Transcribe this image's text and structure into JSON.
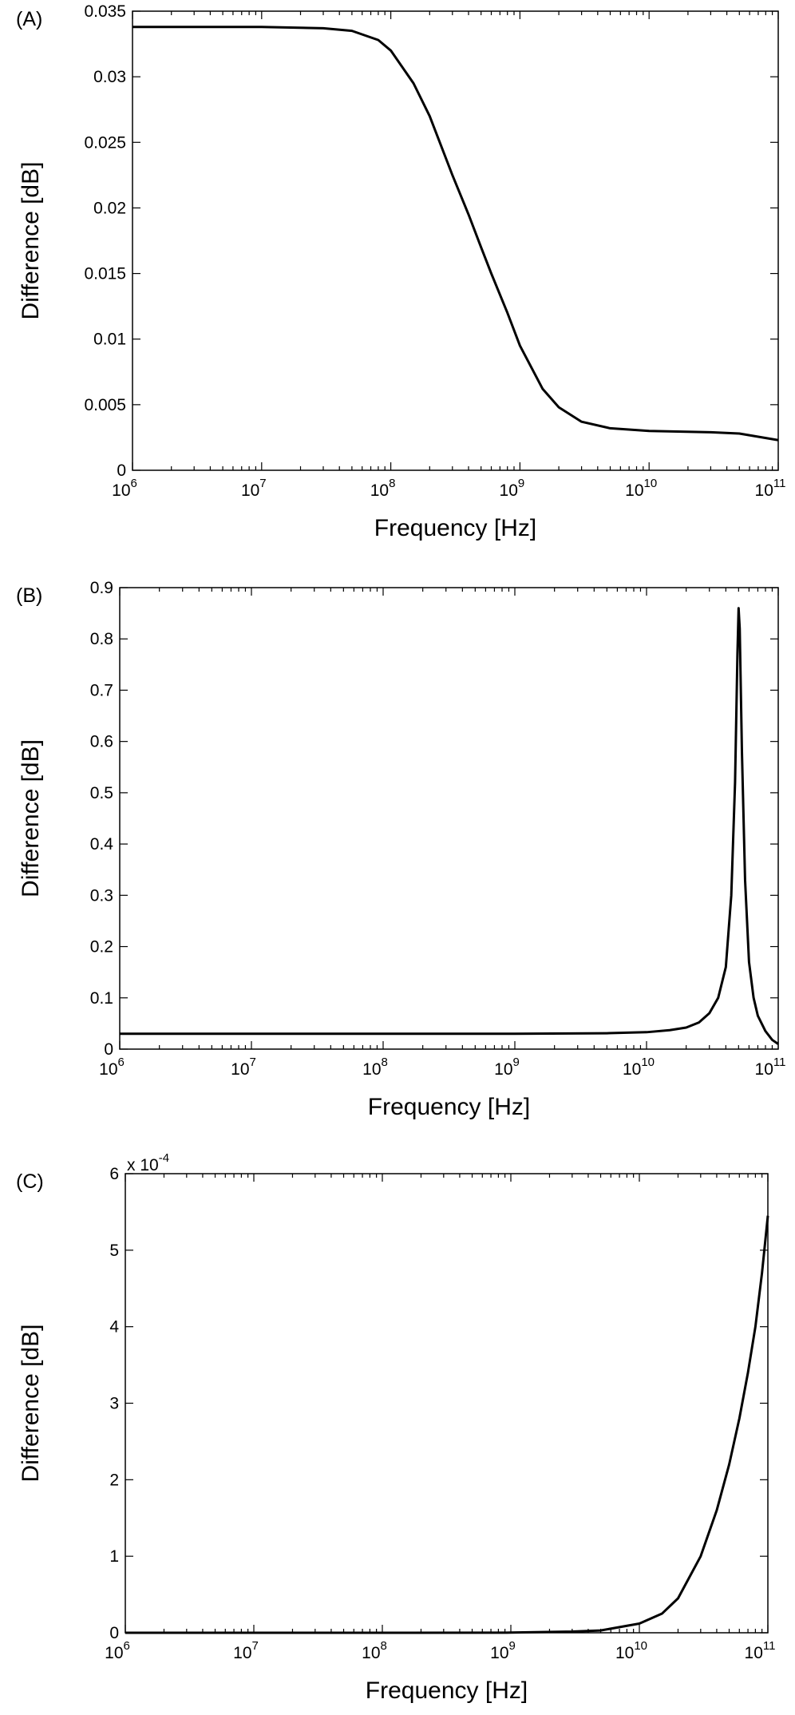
{
  "panels": [
    {
      "label": "(A)",
      "ylabel": "Difference [dB]",
      "xlabel": "Frequency [Hz]",
      "exponent_label": "",
      "y_ticks": [
        "0",
        "0.005",
        "0.01",
        "0.015",
        "0.02",
        "0.025",
        "0.03",
        "0.035"
      ],
      "x_ticks": [
        "10^6",
        "10^7",
        "10^8",
        "10^9",
        "10^10",
        "10^11"
      ]
    },
    {
      "label": "(B)",
      "ylabel": "Difference [dB]",
      "xlabel": "Frequency [Hz]",
      "exponent_label": "",
      "y_ticks": [
        "0",
        "0.1",
        "0.2",
        "0.3",
        "0.4",
        "0.5",
        "0.6",
        "0.7",
        "0.8",
        "0.9"
      ],
      "x_ticks": [
        "10^6",
        "10^7",
        "10^8",
        "10^9",
        "10^10",
        "10^11"
      ]
    },
    {
      "label": "(C)",
      "ylabel": "Difference [dB]",
      "xlabel": "Frequency [Hz]",
      "exponent_label": "x 10^-4",
      "y_ticks": [
        "0",
        "1",
        "2",
        "3",
        "4",
        "5",
        "6"
      ],
      "x_ticks": [
        "10^6",
        "10^7",
        "10^8",
        "10^9",
        "10^10",
        "10^11"
      ]
    }
  ],
  "chart_data": [
    {
      "type": "line",
      "title": "",
      "xlabel": "Frequency [Hz]",
      "ylabel": "Difference [dB]",
      "xscale": "log",
      "xlim": [
        1000000.0,
        100000000000.0
      ],
      "ylim": [
        0,
        0.035
      ],
      "y_tick_values": [
        0,
        0.005,
        0.01,
        0.015,
        0.02,
        0.025,
        0.03,
        0.035
      ],
      "grid": false,
      "series": [
        {
          "x": [
            1000000.0,
            3000000.0,
            10000000.0,
            30000000.0,
            50000000.0,
            80000000.0,
            100000000.0,
            150000000.0,
            200000000.0,
            300000000.0,
            400000000.0,
            500000000.0,
            600000000.0,
            800000000.0,
            1000000000.0,
            1500000000.0,
            2000000000.0,
            3000000000.0,
            5000000000.0,
            10000000000.0,
            30000000000.0,
            50000000000.0,
            100000000000.0
          ],
          "y": [
            0.0338,
            0.0338,
            0.0338,
            0.0337,
            0.0335,
            0.0328,
            0.032,
            0.0295,
            0.027,
            0.0225,
            0.0195,
            0.017,
            0.015,
            0.012,
            0.0095,
            0.0062,
            0.0048,
            0.0037,
            0.0032,
            0.003,
            0.0029,
            0.0028,
            0.0023
          ]
        }
      ]
    },
    {
      "type": "line",
      "title": "",
      "xlabel": "Frequency [Hz]",
      "ylabel": "Difference [dB]",
      "xscale": "log",
      "xlim": [
        1000000.0,
        100000000000.0
      ],
      "ylim": [
        0,
        0.9
      ],
      "y_tick_values": [
        0,
        0.1,
        0.2,
        0.3,
        0.4,
        0.5,
        0.6,
        0.7,
        0.8,
        0.9
      ],
      "grid": false,
      "series": [
        {
          "x": [
            1000000.0,
            100000000.0,
            1000000000.0,
            5000000000.0,
            10000000000.0,
            15000000000.0,
            20000000000.0,
            25000000000.0,
            30000000000.0,
            35000000000.0,
            40000000000.0,
            44000000000.0,
            47000000000.0,
            49000000000.0,
            50000000000.0,
            51000000000.0,
            53000000000.0,
            56000000000.0,
            60000000000.0,
            65000000000.0,
            70000000000.0,
            80000000000.0,
            90000000000.0,
            100000000000.0
          ],
          "y": [
            0.03,
            0.03,
            0.03,
            0.031,
            0.033,
            0.037,
            0.042,
            0.052,
            0.07,
            0.1,
            0.16,
            0.3,
            0.52,
            0.77,
            0.86,
            0.82,
            0.58,
            0.33,
            0.17,
            0.1,
            0.065,
            0.035,
            0.018,
            0.01
          ]
        }
      ]
    },
    {
      "type": "line",
      "title": "",
      "xlabel": "Frequency [Hz]",
      "ylabel": "Difference [dB]",
      "xscale": "log",
      "xlim": [
        1000000.0,
        100000000000.0
      ],
      "ylim": [
        0,
        6
      ],
      "y_multiplier": "x 10^-4",
      "y_tick_values": [
        0,
        1,
        2,
        3,
        4,
        5,
        6
      ],
      "grid": false,
      "series": [
        {
          "x": [
            1000000.0,
            100000000.0,
            1000000000.0,
            3000000000.0,
            5000000000.0,
            10000000000.0,
            15000000000.0,
            20000000000.0,
            30000000000.0,
            40000000000.0,
            50000000000.0,
            60000000000.0,
            70000000000.0,
            80000000000.0,
            90000000000.0,
            100000000000.0
          ],
          "y": [
            0,
            0,
            0.002,
            0.015,
            0.03,
            0.12,
            0.25,
            0.45,
            1.0,
            1.6,
            2.2,
            2.8,
            3.4,
            4.0,
            4.7,
            5.45
          ]
        }
      ]
    }
  ]
}
